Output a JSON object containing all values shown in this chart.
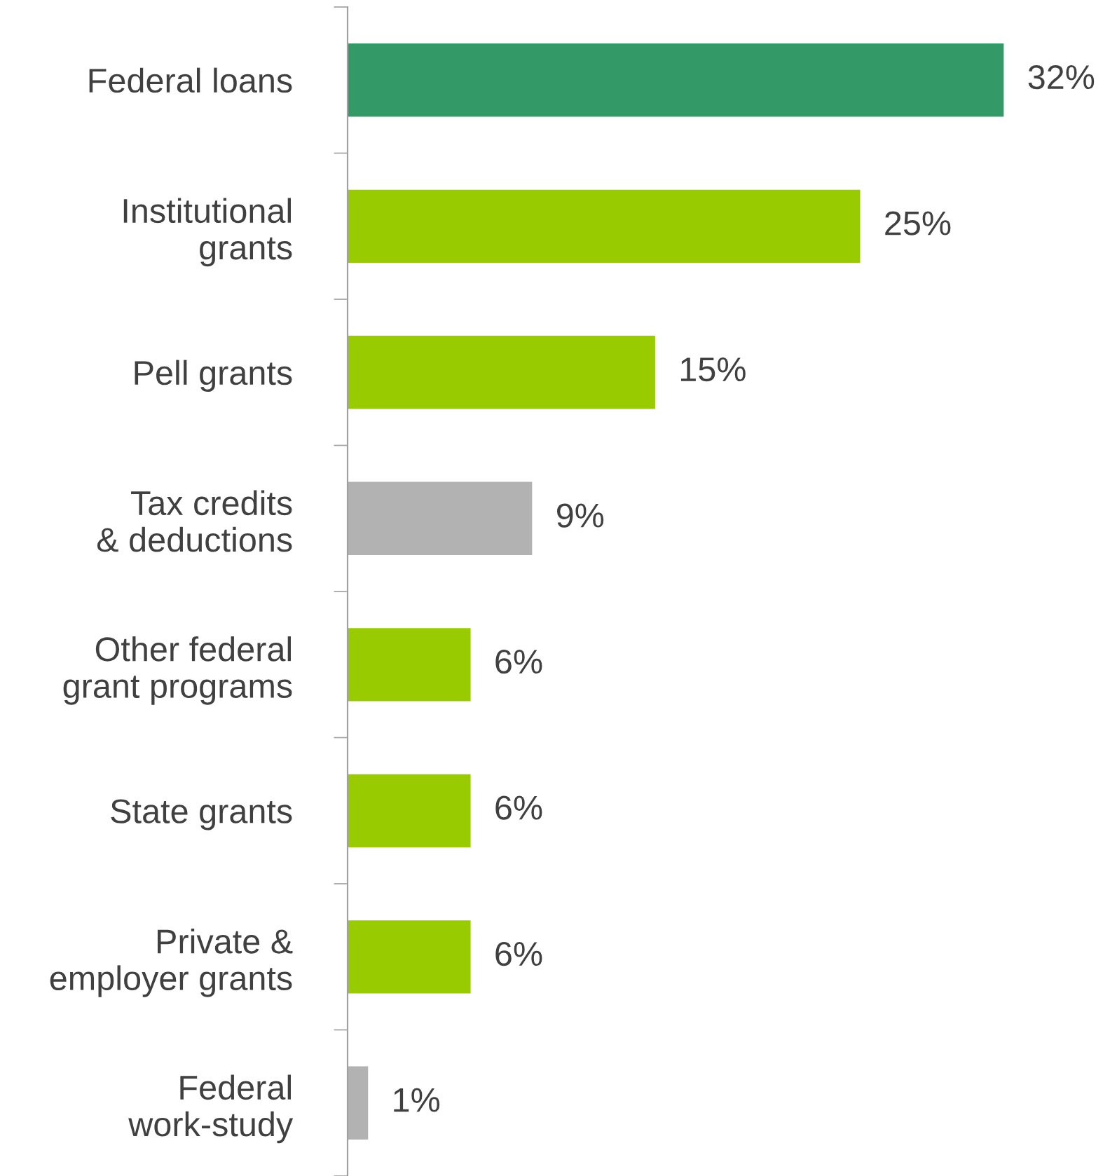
{
  "chart_data": {
    "type": "bar",
    "orientation": "horizontal",
    "categories": [
      "Federal loans",
      "Institutional\ngrants",
      "Pell grants",
      "Tax credits\n& deductions",
      "Other federal\ngrant programs",
      "State grants",
      "Private &\nemployer grants",
      "Federal\nwork-study"
    ],
    "values": [
      32,
      25,
      15,
      9,
      6,
      6,
      6,
      1
    ],
    "colors": [
      "#339966",
      "#99cc00",
      "#99cc00",
      "#b2b2b2",
      "#99cc00",
      "#99cc00",
      "#99cc00",
      "#b2b2b2"
    ],
    "value_labels": [
      "32%",
      "25%",
      "15%",
      "9%",
      "6%",
      "6%",
      "6%",
      "1%"
    ],
    "grid": false,
    "legend": false
  }
}
